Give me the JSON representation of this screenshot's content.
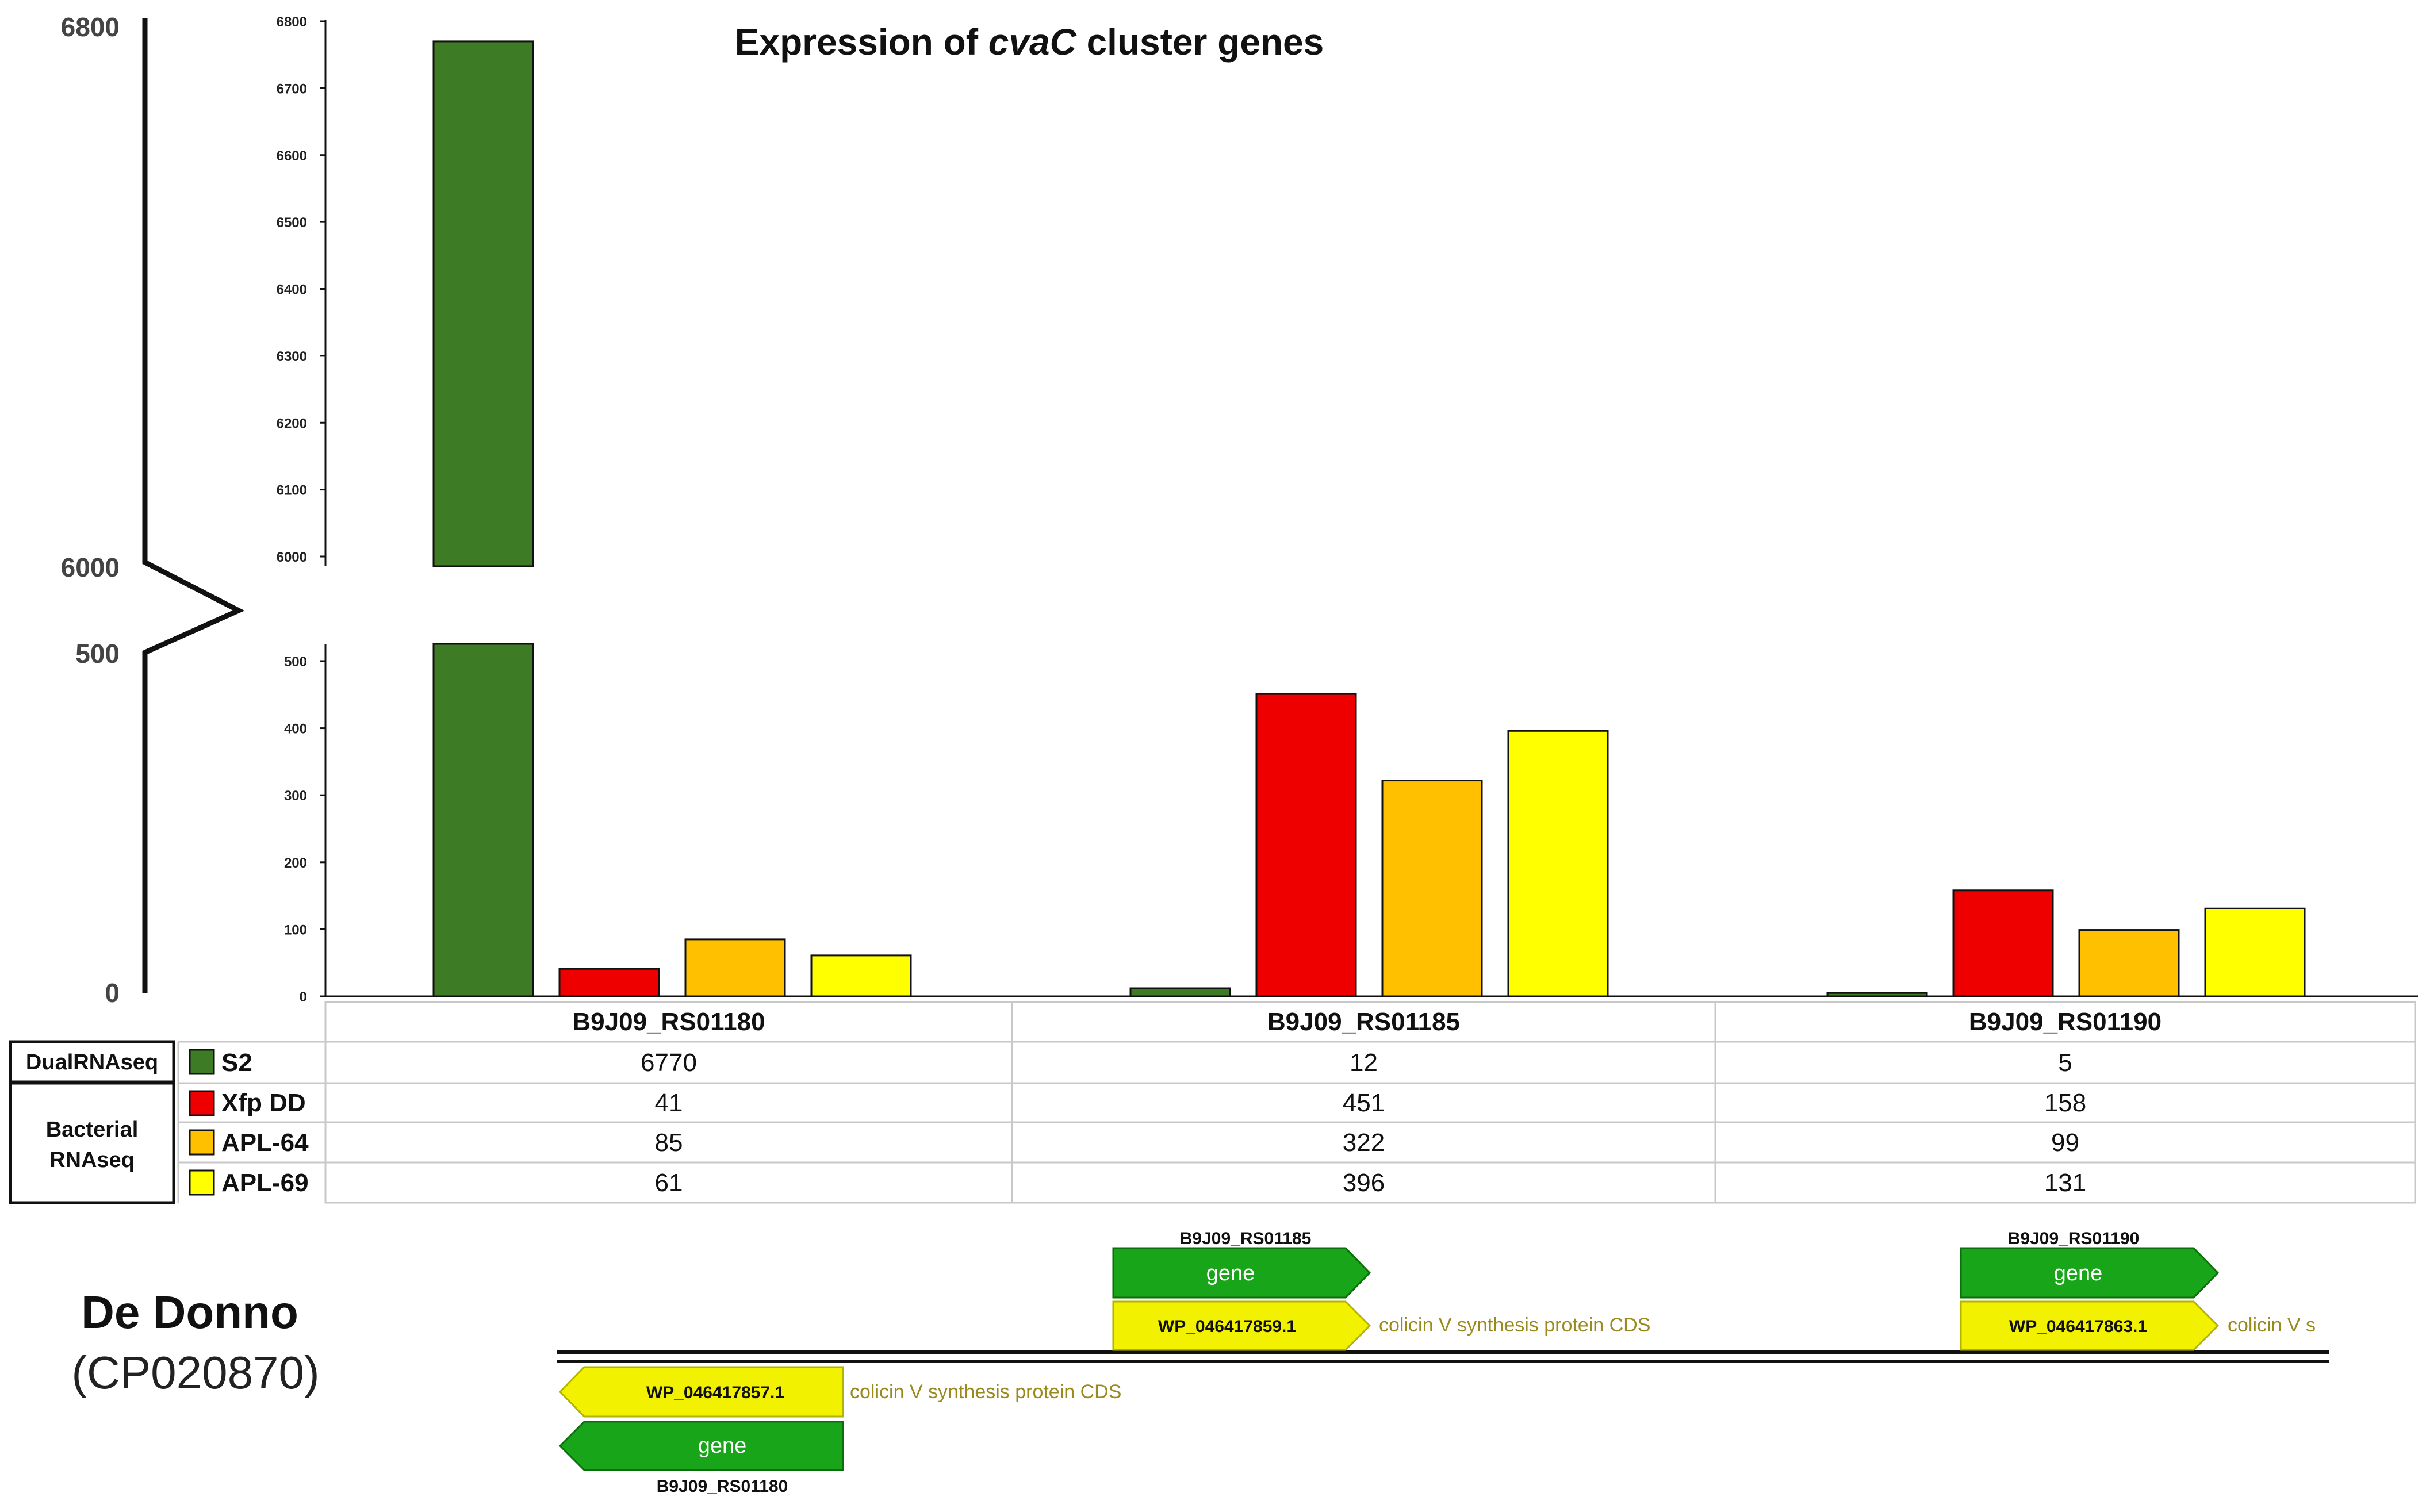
{
  "chart_data": {
    "type": "bar",
    "title_pre": "Expression of ",
    "title_em": "cvaC",
    "title_post": " cluster genes",
    "categories": [
      "B9J09_RS01180",
      "B9J09_RS01185",
      "B9J09_RS01190"
    ],
    "series": [
      {
        "name": "S2",
        "color": "#3d7b24",
        "values": [
          6770,
          12,
          5
        ]
      },
      {
        "name": "Xfp DD",
        "color": "#ee0000",
        "values": [
          41,
          451,
          158
        ]
      },
      {
        "name": "APL-64",
        "color": "#ffc000",
        "values": [
          85,
          322,
          99
        ]
      },
      {
        "name": "APL-69",
        "color": "#ffff00",
        "values": [
          61,
          396,
          131
        ]
      }
    ],
    "axis_break": true,
    "ylim_upper": [
      6000,
      6800
    ],
    "ylim_lower": [
      0,
      500
    ],
    "yticks_upper": [
      "6800",
      "6700",
      "6600",
      "6500",
      "6400",
      "6300",
      "6200",
      "6100",
      "6000"
    ],
    "yticks_lower": [
      "500",
      "400",
      "300",
      "200",
      "100",
      "0"
    ],
    "break_axis_labels": [
      "6800",
      "6000",
      "500",
      "0"
    ],
    "row_groups": [
      {
        "label": "DualRNAseq",
        "series": [
          "S2"
        ]
      },
      {
        "label_lines": [
          "Bacterial",
          "RNAseq"
        ],
        "series": [
          "Xfp DD",
          "APL-64",
          "APL-69"
        ]
      }
    ]
  },
  "genome": {
    "name": "De Donno",
    "accession": "(CP020870)",
    "genes": [
      {
        "locus": "B9J09_RS01180",
        "type_label": "gene",
        "cds_id": "WP_046417857.1",
        "description": "colicin V synthesis protein CDS",
        "strand": "-"
      },
      {
        "locus": "B9J09_RS01185",
        "type_label": "gene",
        "cds_id": "WP_046417859.1",
        "description": "colicin V synthesis protein CDS",
        "strand": "+"
      },
      {
        "locus": "B9J09_RS01190",
        "type_label": "gene",
        "cds_id": "WP_046417863.1",
        "description": "colicin V s",
        "strand": "+"
      }
    ],
    "colors": {
      "gene_fill": "#19a519",
      "cds_fill": "#f2f200",
      "description": "#9a8a1e"
    }
  }
}
